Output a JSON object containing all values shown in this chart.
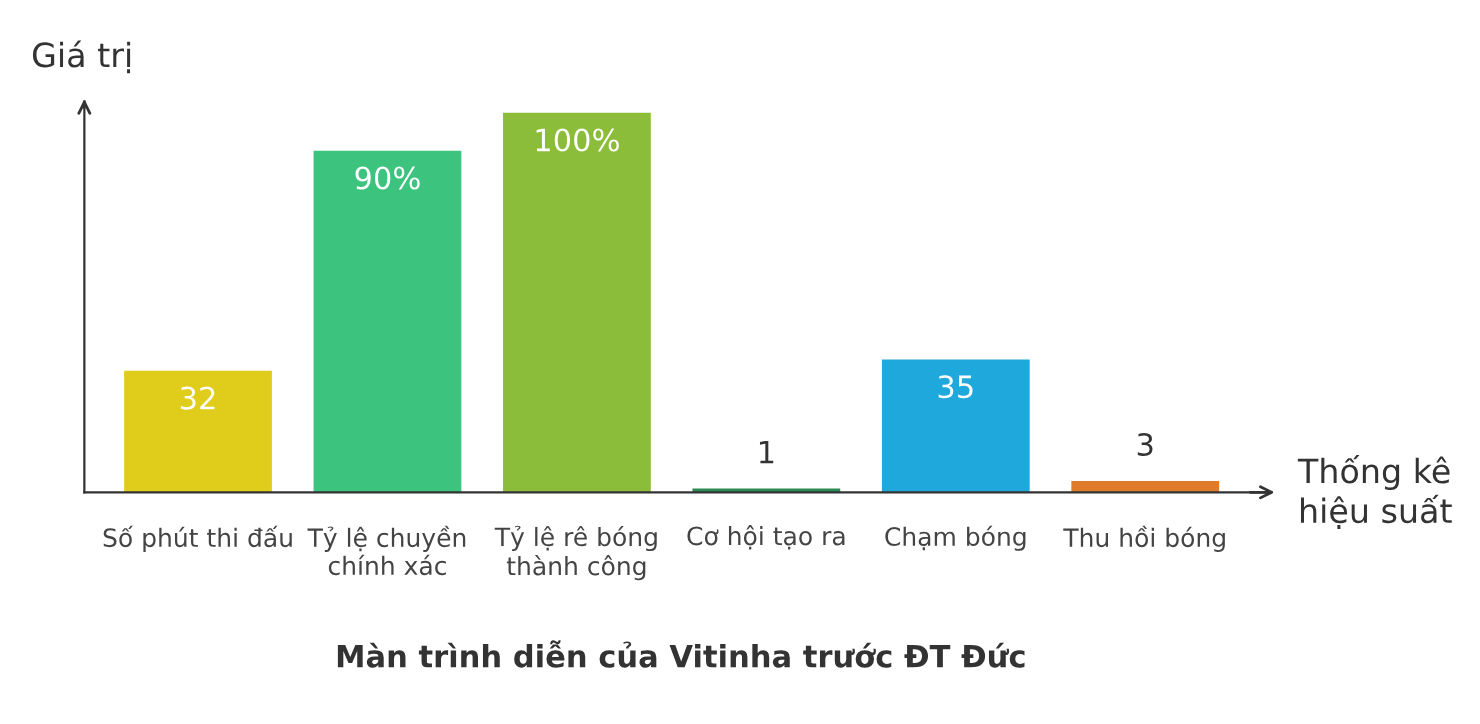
{
  "chart_data": {
    "type": "bar",
    "title": "Màn trình diễn của Vitinha trước ĐT Đức",
    "xlabel": "Thống kê\nhiệu suất",
    "ylabel": "Giá trị",
    "categories": [
      "Số phút thi đấu",
      "Tỷ lệ chuyền\nchính xác",
      "Tỷ lệ rê bóng\nthành công",
      "Cơ hội tạo ra",
      "Chạm bóng",
      "Thu hồi bóng"
    ],
    "values": [
      32,
      90,
      100,
      1,
      35,
      3
    ],
    "value_labels": [
      "32",
      "90%",
      "100%",
      "1",
      "35",
      "3"
    ],
    "colors": [
      "#e0cc1a",
      "#3cc47f",
      "#8bbd3a",
      "#2e8b57",
      "#1fa8dc",
      "#e07b2a"
    ],
    "grid": false,
    "legend": false
  }
}
